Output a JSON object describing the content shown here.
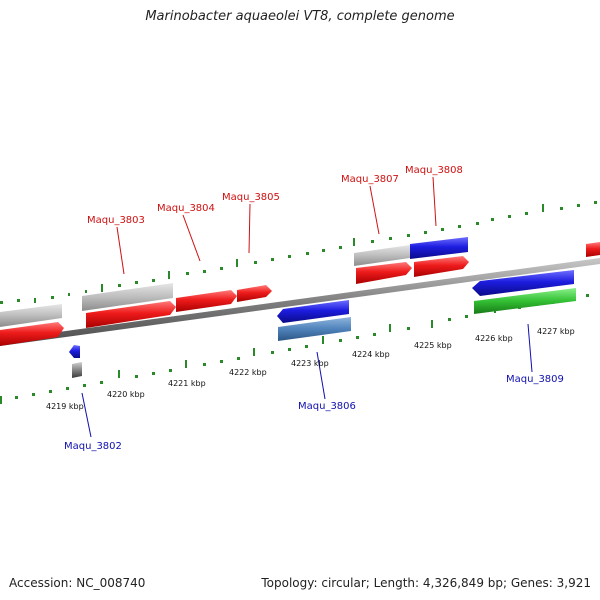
{
  "title": "Marinobacter aquaeolei VT8, complete genome",
  "footer": {
    "accession": "Accession: NC_008740",
    "info": "Topology: circular; Length: 4,326,849 bp; Genes: 3,921"
  },
  "colors": {
    "forward_gene": "#e01818",
    "forward_other": "#b8b8b8",
    "reverse_gene": "#1a1ad8",
    "reverse_alt": "#4a7fb8",
    "reverse_green": "#33bb33",
    "tick": "#2a8a2a",
    "backbone": "#8a8a8a",
    "label_top": "#d01010",
    "label_bottom": "#1010b0"
  },
  "scale_labels": [
    "4219 kbp",
    "4220 kbp",
    "4221 kbp",
    "4222 kbp",
    "4223 kbp",
    "4224 kbp",
    "4225 kbp",
    "4226 kbp",
    "4227 kbp"
  ],
  "gene_labels": {
    "top": [
      "Maqu_3803",
      "Maqu_3804",
      "Maqu_3805",
      "Maqu_3807",
      "Maqu_3808"
    ],
    "bottom": [
      "Maqu_3802",
      "Maqu_3806",
      "Maqu_3809"
    ]
  }
}
